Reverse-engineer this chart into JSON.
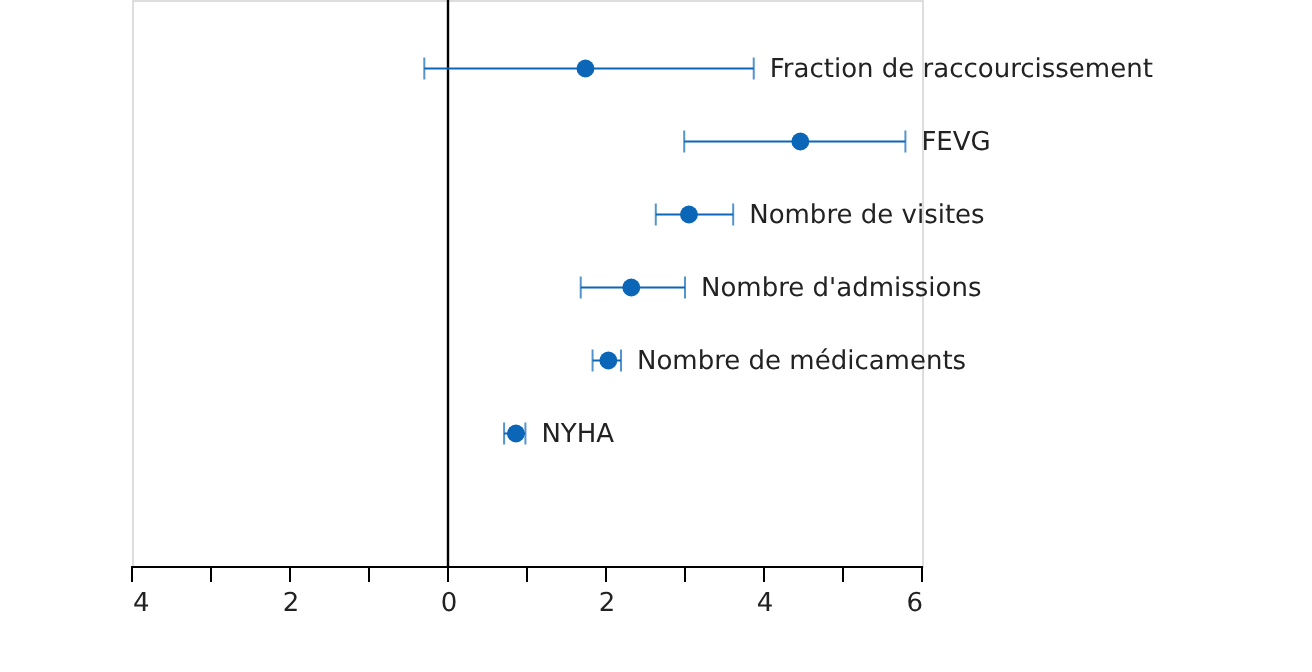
{
  "chart_data": {
    "type": "scatter",
    "orientation": "horizontal",
    "tick_labels": "x",
    "grid": false,
    "marker": "circle",
    "categories": [
      "Fraction de raccourcissement",
      "FEVG",
      "Nombre de visites",
      "Nombre d'admissions",
      "Nombre de médicaments",
      "NYHA"
    ],
    "values": [
      1.74,
      4.46,
      3.05,
      2.32,
      2.03,
      0.86
    ],
    "errors": [
      [
        -0.3,
        3.87
      ],
      [
        2.99,
        5.79
      ],
      [
        2.63,
        3.61
      ],
      [
        1.68,
        3.0
      ],
      [
        1.83,
        2.19
      ],
      [
        0.71,
        0.98
      ]
    ],
    "color": "#0b66b8",
    "xlim": [
      -4,
      6
    ],
    "xticks": [
      {
        "value": -4,
        "label": "4"
      },
      {
        "value": -3,
        "label": null
      },
      {
        "value": -2,
        "label": "2"
      },
      {
        "value": -1,
        "label": null
      },
      0,
      {
        "value": 1,
        "label": null
      },
      2,
      {
        "value": 3,
        "label": null
      },
      4,
      {
        "value": 5,
        "label": null
      },
      6
    ],
    "ref_lines": [
      {
        "axis": "x",
        "value": 0,
        "color": "#000000"
      }
    ]
  }
}
